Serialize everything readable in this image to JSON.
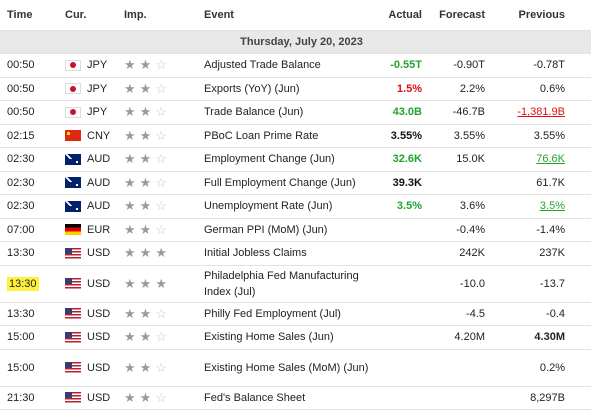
{
  "headers": {
    "time": "Time",
    "cur": "Cur.",
    "imp": "Imp.",
    "event": "Event",
    "actual": "Actual",
    "forecast": "Forecast",
    "previous": "Previous"
  },
  "date_row": "Thursday, July 20, 2023",
  "rows": [
    {
      "time": "00:50",
      "flag": "jp",
      "cur": "JPY",
      "stars": 2,
      "event": "Adjusted Trade Balance",
      "actual": "-0.55T",
      "actual_color": "green",
      "forecast": "-0.90T",
      "previous": "-0.78T",
      "prev_style": ""
    },
    {
      "time": "00:50",
      "flag": "jp",
      "cur": "JPY",
      "stars": 2,
      "event": "Exports (YoY) (Jun)",
      "actual": "1.5%",
      "actual_color": "red",
      "forecast": "2.2%",
      "previous": "0.6%",
      "prev_style": ""
    },
    {
      "time": "00:50",
      "flag": "jp",
      "cur": "JPY",
      "stars": 2,
      "event": "Trade Balance (Jun)",
      "actual": "43.0B",
      "actual_color": "green",
      "forecast": "-46.7B",
      "previous": "-1,381.9B",
      "prev_style": "red"
    },
    {
      "time": "02:15",
      "flag": "cn",
      "cur": "CNY",
      "stars": 2,
      "event": "PBoC Loan Prime Rate",
      "actual": "3.55%",
      "actual_color": "black",
      "forecast": "3.55%",
      "previous": "3.55%",
      "prev_style": ""
    },
    {
      "time": "02:30",
      "flag": "au",
      "cur": "AUD",
      "stars": 2,
      "event": "Employment Change (Jun)",
      "actual": "32.6K",
      "actual_color": "green",
      "forecast": "15.0K",
      "previous": "76.6K",
      "prev_style": "green"
    },
    {
      "time": "02:30",
      "flag": "au",
      "cur": "AUD",
      "stars": 2,
      "event": "Full Employment Change (Jun)",
      "actual": "39.3K",
      "actual_color": "black",
      "forecast": "",
      "previous": "61.7K",
      "prev_style": ""
    },
    {
      "time": "02:30",
      "flag": "au",
      "cur": "AUD",
      "stars": 2,
      "event": "Unemployment Rate (Jun)",
      "actual": "3.5%",
      "actual_color": "green",
      "forecast": "3.6%",
      "previous": "3.5%",
      "prev_style": "green"
    },
    {
      "time": "07:00",
      "flag": "de",
      "cur": "EUR",
      "stars": 2,
      "event": "German PPI (MoM) (Jun)",
      "actual": "",
      "actual_color": "black",
      "forecast": "-0.4%",
      "previous": "-1.4%",
      "prev_style": ""
    },
    {
      "time": "13:30",
      "flag": "us",
      "cur": "USD",
      "stars": 3,
      "event": "Initial Jobless Claims",
      "actual": "",
      "actual_color": "black",
      "forecast": "242K",
      "previous": "237K",
      "prev_style": ""
    },
    {
      "time": "13:30",
      "flag": "us",
      "cur": "USD",
      "stars": 3,
      "event": "Philadelphia Fed Manufacturing Index (Jul)",
      "actual": "",
      "actual_color": "black",
      "forecast": "-10.0",
      "previous": "-13.7",
      "prev_style": "",
      "highlight_time": true,
      "tall": true
    },
    {
      "time": "13:30",
      "flag": "us",
      "cur": "USD",
      "stars": 2,
      "event": "Philly Fed Employment (Jul)",
      "actual": "",
      "actual_color": "black",
      "forecast": "-4.5",
      "previous": "-0.4",
      "prev_style": ""
    },
    {
      "time": "15:00",
      "flag": "us",
      "cur": "USD",
      "stars": 2,
      "event": "Existing Home Sales (Jun)",
      "actual": "",
      "actual_color": "black",
      "forecast": "4.20M",
      "previous": "4.30M",
      "prev_style": "bold"
    },
    {
      "time": "15:00",
      "flag": "us",
      "cur": "USD",
      "stars": 2,
      "event": "Existing Home Sales (MoM) (Jun)",
      "actual": "",
      "actual_color": "black",
      "forecast": "",
      "previous": "0.2%",
      "prev_style": "",
      "tall": true
    },
    {
      "time": "21:30",
      "flag": "us",
      "cur": "USD",
      "stars": 2,
      "event": "Fed's Balance Sheet",
      "actual": "",
      "actual_color": "black",
      "forecast": "",
      "previous": "8,297B",
      "prev_style": ""
    }
  ],
  "colors": {
    "green": "#22a52e",
    "red": "#e01010",
    "date_row_bg": "#e8e8e8",
    "highlight": "#fdf23b"
  },
  "icons": {
    "star": "star-icon",
    "flags": [
      "japan-flag-icon",
      "china-flag-icon",
      "australia-flag-icon",
      "germany-flag-icon",
      "usa-flag-icon"
    ]
  }
}
